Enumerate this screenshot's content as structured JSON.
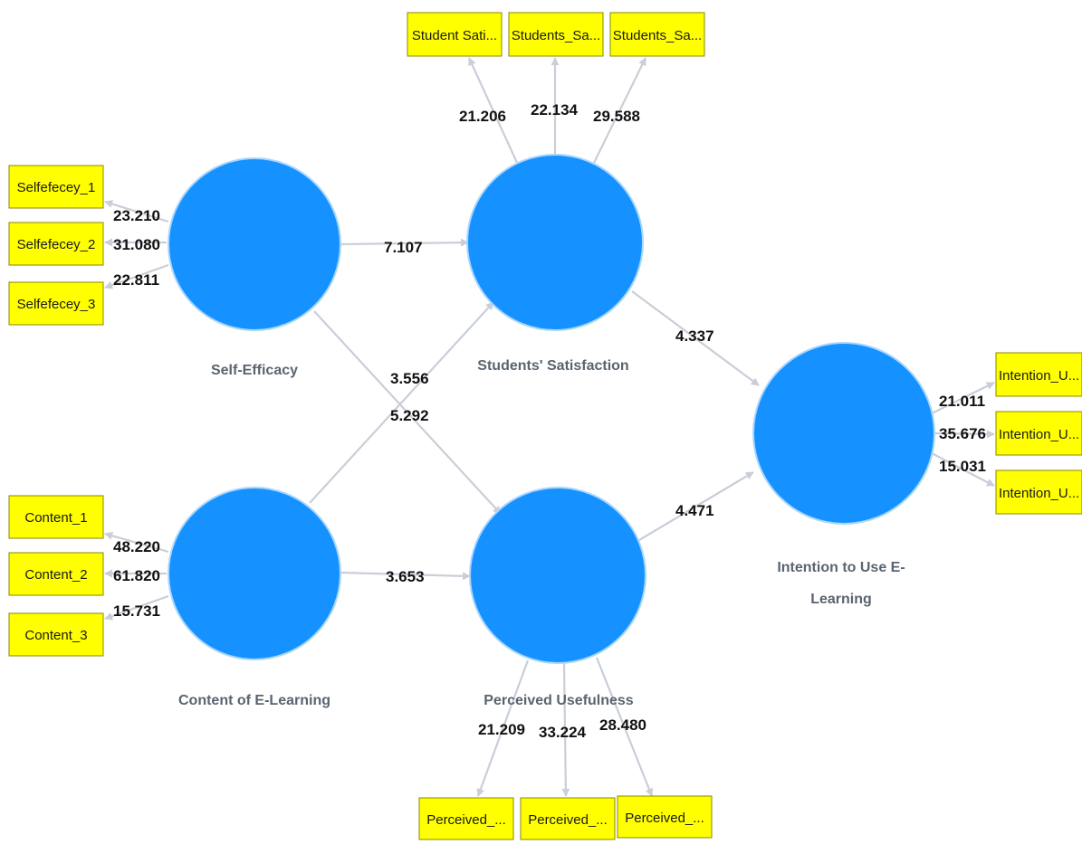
{
  "colors": {
    "latent_fill": "#1592ff",
    "indicator_fill": "#ffff00",
    "connector": "#c9ced8",
    "label_text": "#5a6470",
    "coefficient_text": "#111111"
  },
  "constructs": {
    "self_efficacy": "Self-Efficacy",
    "students_satisfaction": "Students' Satisfaction",
    "content_elearning": "Content of E-Learning",
    "perceived_usefulness": "Perceived Usefulness",
    "intention_line1": "Intention to Use E-",
    "intention_line2": "Learning"
  },
  "indicators": {
    "self_efficacy": [
      "Selfefecey_1",
      "Selfefecey_2",
      "Selfefecey_3"
    ],
    "students_satisfaction": [
      "Student Sati...",
      "Students_Sa...",
      "Students_Sa..."
    ],
    "content_elearning": [
      "Content_1",
      "Content_2",
      "Content_3"
    ],
    "perceived_usefulness": [
      "Perceived_...",
      "Perceived_...",
      "Perceived_..."
    ],
    "intention": [
      "Intention_U...",
      "Intention_U...",
      "Intention_U..."
    ]
  },
  "loadings": {
    "self_efficacy": [
      "23.210",
      "31.080",
      "22.811"
    ],
    "students_satisfaction": [
      "21.206",
      "22.134",
      "29.588"
    ],
    "content_elearning": [
      "48.220",
      "61.820",
      "15.731"
    ],
    "perceived_usefulness": [
      "21.209",
      "33.224",
      "28.480"
    ],
    "intention": [
      "21.011",
      "35.676",
      "15.031"
    ]
  },
  "paths": {
    "se_to_ss": "7.107",
    "ce_to_ss": "3.556",
    "se_to_pu": "5.292",
    "ce_to_pu": "3.653",
    "ss_to_int": "4.337",
    "pu_to_int": "4.471"
  }
}
